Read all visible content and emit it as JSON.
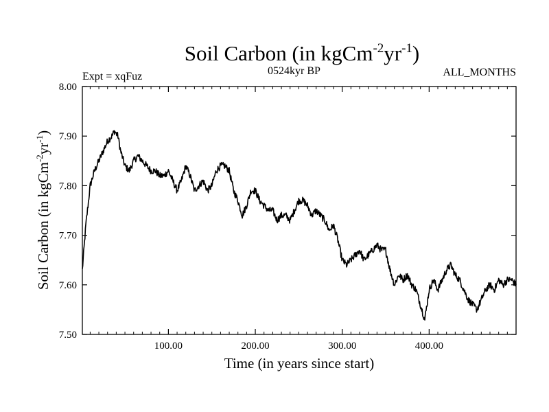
{
  "chart_data": {
    "type": "line",
    "title_main": "Soil Carbon (in kgCm",
    "title_sup1": "-2",
    "title_mid": "yr",
    "title_sup2": "-1",
    "title_end": ")",
    "left_label": "Expt = xqFuz",
    "center_label": "0524kyr BP",
    "right_label": "ALL_MONTHS",
    "xlabel": "Time (in years since start)",
    "ylabel_main": "Soil Carbon (in kgCm",
    "ylabel_sup1": "-2",
    "ylabel_mid": "yr",
    "ylabel_sup2": "-1",
    "ylabel_end": ")",
    "xlim": [
      1,
      500
    ],
    "ylim": [
      7.5,
      8.0
    ],
    "xticks": [
      100,
      200,
      300,
      400
    ],
    "xtick_labels": [
      "100.00",
      "200.00",
      "300.00",
      "400.00"
    ],
    "yticks": [
      7.5,
      7.6,
      7.7,
      7.8,
      7.9,
      8.0
    ],
    "ytick_labels": [
      "7.50",
      "7.60",
      "7.70",
      "7.80",
      "7.90",
      "8.00"
    ],
    "line_color": "#000000",
    "series": [
      {
        "name": "soil carbon",
        "x": [
          1,
          5,
          10,
          15,
          20,
          25,
          30,
          35,
          38,
          42,
          45,
          50,
          55,
          60,
          65,
          70,
          75,
          80,
          85,
          90,
          95,
          100,
          105,
          110,
          115,
          120,
          125,
          130,
          135,
          140,
          145,
          150,
          155,
          160,
          165,
          170,
          175,
          180,
          185,
          190,
          195,
          200,
          205,
          210,
          215,
          220,
          225,
          230,
          235,
          240,
          245,
          250,
          255,
          260,
          265,
          270,
          275,
          280,
          285,
          290,
          295,
          300,
          305,
          310,
          315,
          320,
          325,
          330,
          335,
          340,
          345,
          350,
          355,
          360,
          365,
          370,
          375,
          380,
          385,
          390,
          395,
          400,
          405,
          410,
          415,
          420,
          425,
          430,
          435,
          440,
          445,
          450,
          455,
          460,
          465,
          470,
          475,
          480,
          485,
          490,
          495,
          500
        ],
        "y": [
          7.63,
          7.72,
          7.8,
          7.83,
          7.85,
          7.87,
          7.89,
          7.9,
          7.91,
          7.9,
          7.87,
          7.84,
          7.83,
          7.85,
          7.86,
          7.85,
          7.84,
          7.83,
          7.83,
          7.82,
          7.82,
          7.83,
          7.81,
          7.79,
          7.81,
          7.84,
          7.82,
          7.79,
          7.8,
          7.81,
          7.79,
          7.8,
          7.83,
          7.84,
          7.84,
          7.83,
          7.79,
          7.77,
          7.74,
          7.76,
          7.79,
          7.79,
          7.77,
          7.76,
          7.75,
          7.75,
          7.73,
          7.74,
          7.74,
          7.73,
          7.75,
          7.77,
          7.77,
          7.76,
          7.74,
          7.75,
          7.74,
          7.73,
          7.71,
          7.72,
          7.69,
          7.65,
          7.64,
          7.65,
          7.66,
          7.67,
          7.65,
          7.66,
          7.67,
          7.68,
          7.67,
          7.67,
          7.63,
          7.6,
          7.62,
          7.61,
          7.62,
          7.6,
          7.59,
          7.56,
          7.53,
          7.59,
          7.61,
          7.59,
          7.61,
          7.63,
          7.64,
          7.62,
          7.61,
          7.59,
          7.57,
          7.56,
          7.55,
          7.57,
          7.59,
          7.6,
          7.59,
          7.61,
          7.6,
          7.61,
          7.61,
          7.6
        ]
      }
    ]
  }
}
